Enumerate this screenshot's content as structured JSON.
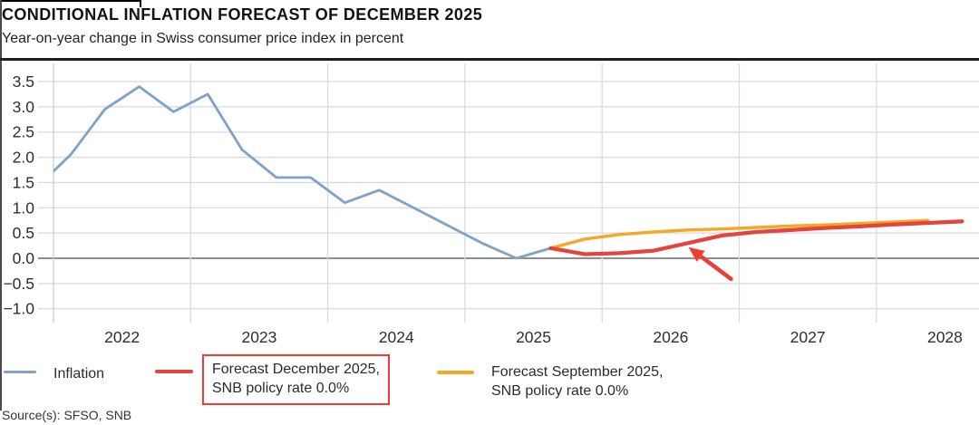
{
  "header": {
    "title": "CONDITIONAL INFLATION FORECAST OF DECEMBER 2025",
    "subtitle": "Year-on-year change in Swiss consumer price index in percent"
  },
  "source_note": "Source(s): SFSO, SNB",
  "colors": {
    "inflation_line": "#7fa2c8",
    "forecast_december_line": "#e2453d",
    "forecast_september_line": "#f6a723",
    "annotation_red": "#ee3d35",
    "gridline": "#dadada",
    "zero_line": "#8f8f8f",
    "axis_line": "#cfcfcf",
    "tick_text": "#2e2e2e"
  },
  "legend": {
    "items": [
      {
        "id": "inflation",
        "swatch_color": "#7fa2c8",
        "line1": "Inflation",
        "line2": ""
      },
      {
        "id": "forecast-december-2025",
        "swatch_color": "#e2453d",
        "line1": "Forecast December 2025,",
        "line2": "SNB policy rate 0.0%",
        "highlighted": true
      },
      {
        "id": "forecast-september-2025",
        "swatch_color": "#f6a723",
        "line1": "Forecast September 2025,",
        "line2": "SNB policy rate 0.0%",
        "highlighted": false
      }
    ]
  },
  "chart_data": {
    "type": "line",
    "title": "CONDITIONAL INFLATION FORECAST OF DECEMBER 2025",
    "subtitle": "Year-on-year change in Swiss consumer price index in percent",
    "unit": "percent, year-on-year change in Swiss CPI",
    "grid": true,
    "legend_position": "bottom",
    "x_axis": {
      "tick_years": [
        2022,
        2023,
        2024,
        2025,
        2026,
        2027,
        2028
      ],
      "range": [
        2022,
        2028.75
      ]
    },
    "y_axis": {
      "ticks": [
        3.5,
        3.0,
        2.5,
        2.0,
        1.5,
        1.0,
        0.5,
        0.0,
        -0.5,
        -1.0
      ],
      "range": [
        -1.25,
        3.85
      ]
    },
    "series": [
      {
        "name": "Inflation",
        "color": "#7fa2c8",
        "points": [
          [
            "2021 Q4",
            1.4
          ],
          [
            "2022 Q1",
            2.05
          ],
          [
            "2022 Q2",
            2.95
          ],
          [
            "2022 Q3",
            3.4
          ],
          [
            "2022 Q4",
            2.9
          ],
          [
            "2023 Q1",
            3.25
          ],
          [
            "2023 Q2",
            2.15
          ],
          [
            "2023 Q3",
            1.6
          ],
          [
            "2023 Q4",
            1.6
          ],
          [
            "2024 Q1",
            1.1
          ],
          [
            "2024 Q2",
            1.35
          ],
          [
            "2024 Q3",
            1.0
          ],
          [
            "2024 Q4",
            0.65
          ],
          [
            "2025 Q1",
            0.3
          ],
          [
            "2025 Q2",
            0.0
          ],
          [
            "2025 Q3",
            0.2
          ]
        ]
      },
      {
        "name": "Forecast December 2025, SNB policy rate 0.0%",
        "color": "#e2453d",
        "points": [
          [
            "2025 Q3",
            0.2
          ],
          [
            "2025 Q4",
            0.08
          ],
          [
            "2026 Q1",
            0.1
          ],
          [
            "2026 Q2",
            0.15
          ],
          [
            "2026 Q3",
            0.3
          ],
          [
            "2026 Q4",
            0.45
          ],
          [
            "2027 Q1",
            0.52
          ],
          [
            "2027 Q2",
            0.56
          ],
          [
            "2027 Q3",
            0.6
          ],
          [
            "2027 Q4",
            0.63
          ],
          [
            "2028 Q1",
            0.67
          ],
          [
            "2028 Q2",
            0.7
          ],
          [
            "2028 Q3",
            0.73
          ]
        ]
      },
      {
        "name": "Forecast September 2025, SNB policy rate 0.0%",
        "color": "#f6a723",
        "points": [
          [
            "2025 Q3",
            0.2
          ],
          [
            "2025 Q4",
            0.38
          ],
          [
            "2026 Q1",
            0.47
          ],
          [
            "2026 Q2",
            0.52
          ],
          [
            "2026 Q3",
            0.56
          ],
          [
            "2026 Q4",
            0.58
          ],
          [
            "2027 Q1",
            0.61
          ],
          [
            "2027 Q2",
            0.64
          ],
          [
            "2027 Q3",
            0.66
          ],
          [
            "2027 Q4",
            0.69
          ],
          [
            "2028 Q1",
            0.72
          ],
          [
            "2028 Q2",
            0.75
          ]
        ]
      }
    ],
    "annotation": {
      "type": "arrow",
      "color": "#ee3d35",
      "target_series": "Forecast December 2025, SNB policy rate 0.0%",
      "from": {
        "t": 2026.94,
        "value": -0.41
      },
      "to": {
        "t": 2026.63,
        "value": 0.22
      }
    }
  }
}
